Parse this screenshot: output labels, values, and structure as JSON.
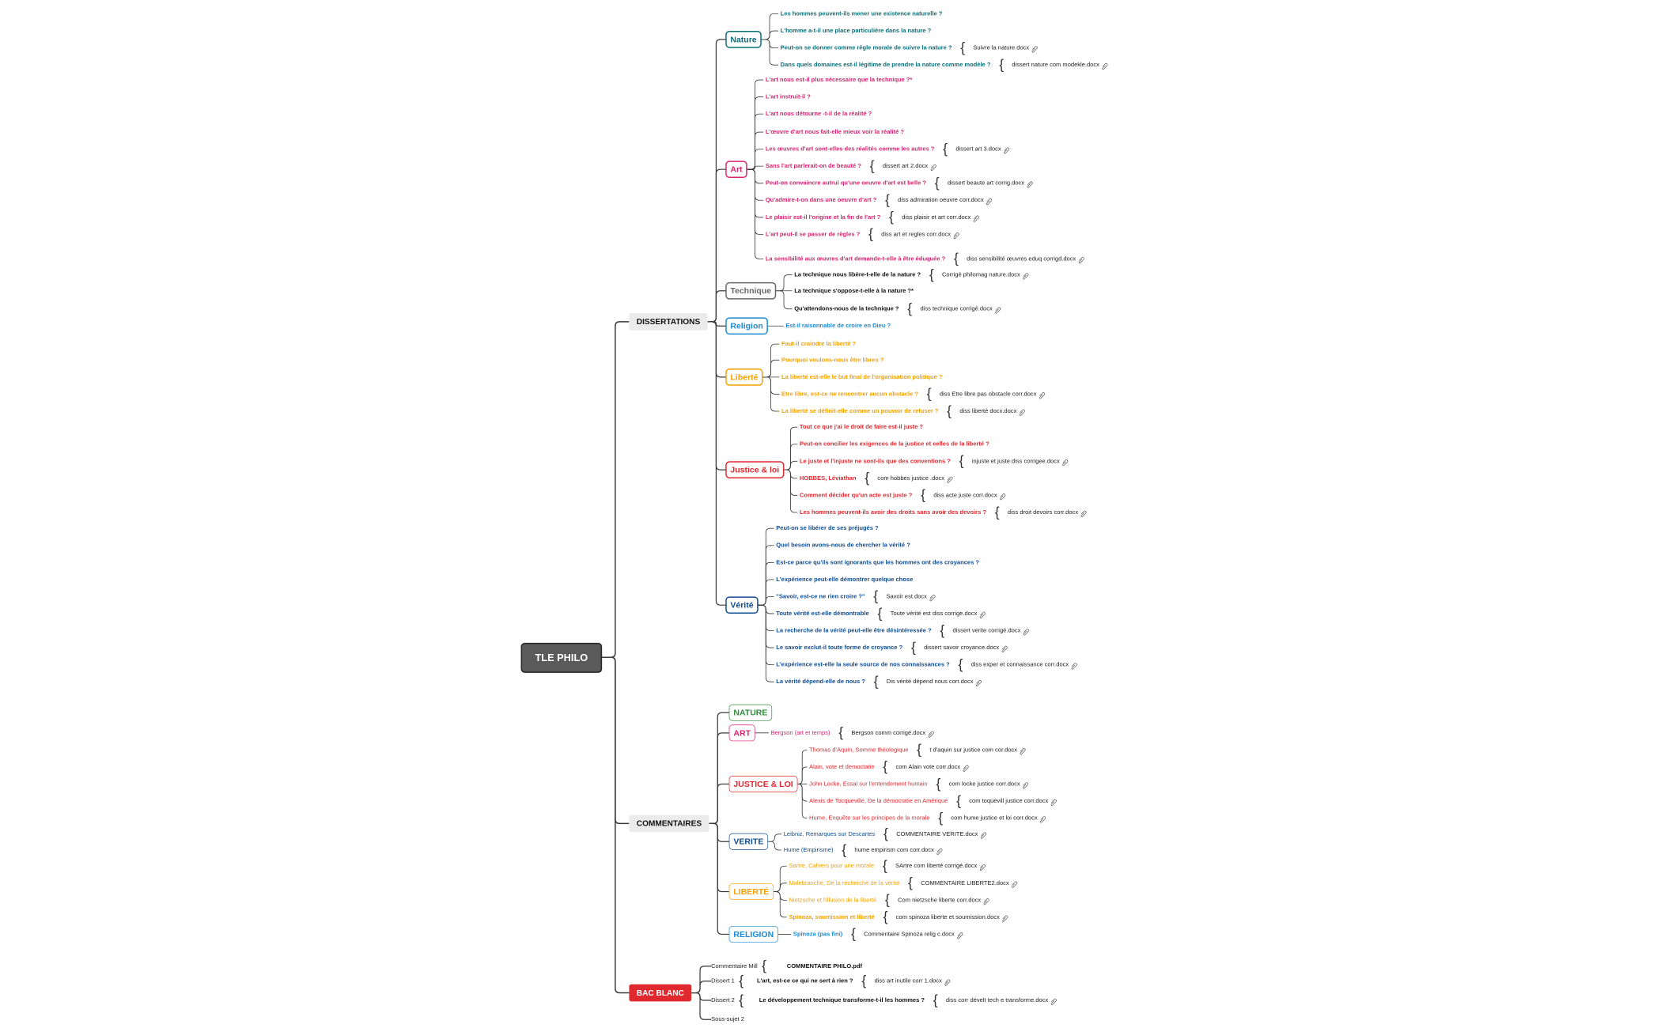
{
  "root": "TLE PHILO",
  "branches": [
    {
      "label": "DISSERTATIONS",
      "topics": [
        {
          "label": "Nature",
          "color": "#0b6e78",
          "items": [
            {
              "text": "Les hommes peuvent-ils mener une existence naturelle ?"
            },
            {
              "text": "L'homme a-t-il une place particulière dans la nature ?"
            },
            {
              "text": "Peut-on se donner comme règle morale de suivre la nature ?",
              "file": "Suivre la nature.docx"
            },
            {
              "text": "Dans quels domaines est-il légitime de prendre la nature comme modèle ?",
              "file": "dissert nature com modekle.docx"
            }
          ]
        },
        {
          "label": "Art",
          "color": "#d6246e",
          "items": [
            {
              "text": "L'art nous est-il plus nécessaire que la technique ?*"
            },
            {
              "text": "L'art instruit-il ?"
            },
            {
              "text": "L'art nous détourne -t-il de la réalité ?"
            },
            {
              "text": "L'œuvre d'art nous fait-elle mieux voir la réalité ?"
            },
            {
              "text": "Les œuvres d'art sont-elles des réalités comme les autres ?",
              "file": "dissert art 3.docx"
            },
            {
              "text": "Sans l'art parlerait-on de beauté ?",
              "file": "dissert art 2.docx"
            },
            {
              "text": "Peut-on convaincre autrui qu'une oeuvre d'art est belle ?",
              "file": "dissert beaute art corrig.docx"
            },
            {
              "text": "Qu'admire-t-on dans une oeuvre d'art ?",
              "file": "diss admiration oeuvre corr.docx"
            },
            {
              "text": "Le plaisir est-il l'origine et la fin de l'art ?",
              "file": "diss plaisir et art corr.docx"
            },
            {
              "text": "L'art peut-il se passer de règles ?",
              "file": "diss art et regles corr.docx"
            },
            {
              "text": "La sensibilité aux œuvres d'art demande-t-elle à être éduquée ?",
              "file": "diss sensibilité  œuvres eduq corrigd.docx"
            }
          ]
        },
        {
          "label": "Technique",
          "color": "#666666",
          "itemColor": "#111111",
          "items": [
            {
              "text": "La technique nous libère-t-elle de la nature ?",
              "file": "Corrigé philomag nature.docx"
            },
            {
              "text": "La technique s'oppose-t-elle à la nature ?*"
            },
            {
              "text": "Qu'attendons-nous de la technique ?",
              "file": "diss technique corrigé.docx"
            }
          ]
        },
        {
          "label": "Religion",
          "color": "#1a8ad4",
          "items": [
            {
              "text": "Est-il raisonnable de croire en Dieu ?"
            }
          ]
        },
        {
          "label": "Liberté",
          "color": "#f5a000",
          "items": [
            {
              "text": "Faut-il craindre la liberté ?"
            },
            {
              "text": "Pourquoi voulons-nous être libres ?"
            },
            {
              "text": "La liberté est-elle le but final de l'organisation politique ?"
            },
            {
              "text": "Etre libre, est-ce ne rencontrer aucun obstacle ?",
              "file": "diss Etre libre pas obstacle corr.docx"
            },
            {
              "text": "La liberté se définit-elle comme un pouvoir de refuser ?",
              "file": "diss liberté  docx.docx"
            }
          ]
        },
        {
          "label": "Justice & loi",
          "color": "#e0292f",
          "items": [
            {
              "text": "Tout ce que j'ai le droit de faire est-il juste ?"
            },
            {
              "text": "Peut-on concilier les exigences de la justice et celles de la liberté ?"
            },
            {
              "text": "Le juste et l'injuste ne sont-ils que des conventions ?",
              "file": "injuste et juste diss corrigee.docx"
            },
            {
              "text": "HOBBES, Léviathan",
              "file": "com hobbes justice .docx"
            },
            {
              "text": "Comment décider qu'un acte est juste ?",
              "file": "diss acte juste corr.docx"
            },
            {
              "text": "Les hommes peuvent-ils avoir des droits sans avoir des devoirs ?",
              "file": "diss droit devoirs corr.docx"
            }
          ]
        },
        {
          "label": "Vérité",
          "color": "#0e4c92",
          "items": [
            {
              "text": "Peut-on se libérer de ses préjugés ?"
            },
            {
              "text": "Quel besoin avons-nous de chercher la vérité ?"
            },
            {
              "text": "Est-ce parce qu'ils sont ignorants que les hommes ont des croyances ?"
            },
            {
              "text": "L'expérience peut-elle démontrer quelque chose"
            },
            {
              "text": "\"Savoir, est-ce ne rien croire ?\"",
              "file": "Savoir est.docx"
            },
            {
              "text": "Toute vérité est-elle démontrable",
              "file": "Toute vérité est diss corrige.docx"
            },
            {
              "text": "La recherche de la vérité peut-elle être désintéressée ?",
              "file": "dissert verite corrigé.docx"
            },
            {
              "text": "Le savoir exclut-il toute forme de croyance ?",
              "file": "dissert savoir croyance.docx"
            },
            {
              "text": "L'expérience est-elle la seule source de nos connaissances ?",
              "file": "diss exper et connaissance corr.docx"
            },
            {
              "text": "La vérité dépend-elle de nous ?",
              "file": "Dis vérité dépend nous corr.docx"
            }
          ]
        }
      ]
    },
    {
      "label": "COMMENTAIRES",
      "topics": [
        {
          "label": "NATURE",
          "color": "#2e8b3a"
        },
        {
          "label": "ART",
          "color": "#d6246e",
          "items": [
            {
              "text": "Bergson (art et temps)",
              "file": "Bergson comm corrigé.docx"
            }
          ]
        },
        {
          "label": "JUSTICE & LOI",
          "color": "#e0292f",
          "items": [
            {
              "text": "Thomas d'Aquin, Somme théologique",
              "file": "t d'aquin sur justice com cor.docx"
            },
            {
              "text": "Alain, vote et democtatie",
              "file": "com Alain vote corr.docx"
            },
            {
              "text": "John Locke, Essai sur l'entendement humain",
              "file": "com locke justice corr.docx"
            },
            {
              "text": "Alexis de Tocqueville, De la démocratie en Amérique",
              "file": "com toquevill justice corr.docx"
            },
            {
              "text": "Hume, Enquête sur les principes de la morale",
              "file": "com hume justice et loi corr.docx"
            }
          ]
        },
        {
          "label": "VERITE",
          "color": "#0e4c92",
          "items": [
            {
              "text": "Leibniz, Remarques sur Descartes",
              "file": "COMMENTAIRE VERITE.docx"
            },
            {
              "text": "Hume (Empirisme)",
              "file": "hume empirism com corr.docx"
            }
          ]
        },
        {
          "label": "LIBERTÉ",
          "color": "#f5a000",
          "items": [
            {
              "text": "Sartre, Cahiers pour une morale",
              "file": "SArtre com liberté corrigé.docx"
            },
            {
              "text": "Malebranche, De la recherche de la vérité",
              "file": "COMMENTAIRE LIBERTE2.docx"
            },
            {
              "text": "Nietzsche et l'illusion de la liberté",
              "file": "Com nietzsche liberte corr.docx"
            },
            {
              "text": "Spinoza, soumission et liberté",
              "file": "com spinoza liberte et soumission.docx"
            }
          ]
        },
        {
          "label": "RELIGION",
          "color": "#1a8ad4",
          "items": [
            {
              "text": "Spinoza (pas fini)",
              "file": "Commentaire Spinoza relig c.docx"
            }
          ]
        }
      ]
    },
    {
      "label": "BAC BLANC",
      "topics": [
        {
          "label": "Commentaire Mill",
          "items": [
            {
              "text": "COMMENTAIRE PHILO.pdf"
            }
          ]
        },
        {
          "label": "Dissert 1",
          "items": [
            {
              "text": "L'art, est-ce ce qui ne sert à rien ?",
              "file": "diss art inutile corr 1.docx"
            }
          ]
        },
        {
          "label": "Dissert 2",
          "items": [
            {
              "text": "Le développement technique transforme-t-il les hommes ?",
              "file": "diss  corr dévelt tech e transforme.docx"
            }
          ]
        },
        {
          "label": "Sous-sujet 2"
        }
      ]
    }
  ]
}
